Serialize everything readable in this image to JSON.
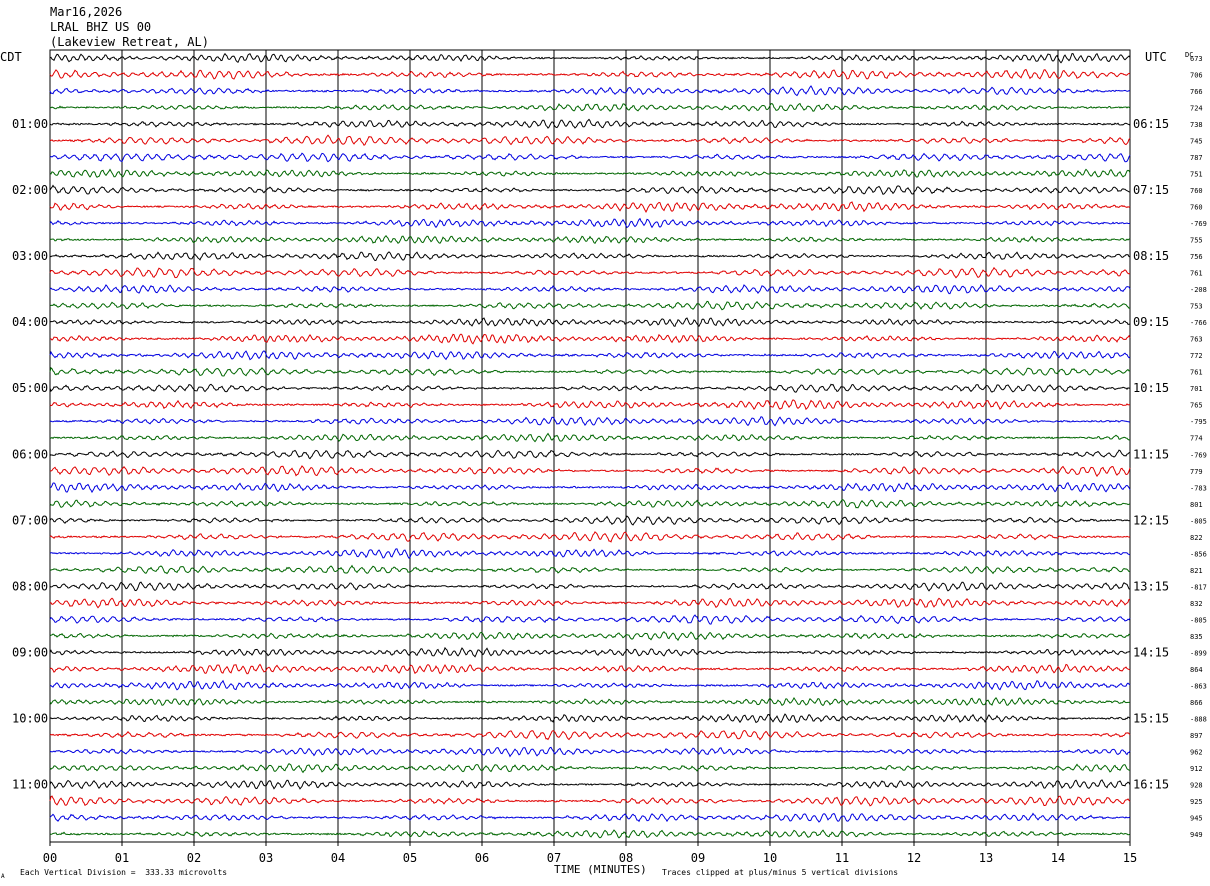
{
  "header": {
    "date": "Mar16,2026",
    "station": "LRAL BHZ US 00",
    "location": "(Lakeview Retreat, AL)"
  },
  "left_zone": "CDT",
  "right_zone": "UTC",
  "dc_header": "DC",
  "footer": {
    "scale_note": "Each Vertical Division =  333.33 microvolts",
    "x_axis_label": "TIME (MINUTES)",
    "clip_note": "Traces clipped at plus/minus 5 vertical divisions",
    "corner_mark": "A"
  },
  "colors": {
    "trace_cycle": [
      "#000000",
      "#e00000",
      "#0000e0",
      "#006600"
    ],
    "grid": "#000000",
    "background": "#ffffff"
  },
  "chart_data": {
    "type": "helicorder",
    "x_ticks": [
      "00",
      "01",
      "02",
      "03",
      "04",
      "05",
      "06",
      "07",
      "08",
      "09",
      "10",
      "11",
      "12",
      "13",
      "14",
      "15"
    ],
    "xlim": [
      0,
      15
    ],
    "minutes_per_line": 15,
    "left_hour_labels": [
      "01:00",
      "02:00",
      "03:00",
      "04:00",
      "05:00",
      "06:00",
      "07:00",
      "08:00",
      "09:00",
      "10:00",
      "11:00"
    ],
    "right_hour_labels": [
      "06:15",
      "07:15",
      "08:15",
      "09:15",
      "10:15",
      "11:15",
      "12:15",
      "13:15",
      "14:15",
      "15:15",
      "16:15"
    ],
    "hour_label_first_trace": 4,
    "traces_per_hour": 4,
    "dc_offsets": [
      "673",
      "706",
      "766",
      "724",
      "738",
      "745",
      "787",
      "751",
      "760",
      "760",
      "-769",
      "755",
      "756",
      "761",
      "-208",
      "753",
      "-766",
      "763",
      "772",
      "761",
      "701",
      "765",
      "-795",
      "774",
      "-769",
      "779",
      "-783",
      "801",
      "-805",
      "822",
      "-856",
      "821",
      "-817",
      "832",
      "-805",
      "835",
      "-899",
      "864",
      "-863",
      "866",
      "-888",
      "897",
      "962",
      "912",
      "928",
      "925",
      "945",
      "949"
    ],
    "amplitude_cycle": [
      1.0,
      1.15,
      1.05,
      0.95
    ]
  }
}
